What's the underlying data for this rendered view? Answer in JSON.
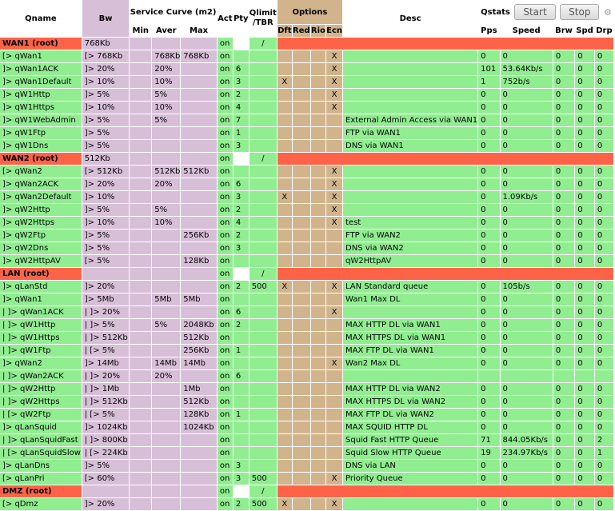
{
  "header": {
    "qname": "Qname",
    "bw": "Bw",
    "service_curve": "Service Curve (m2)",
    "min": "Min",
    "aver": "Aver",
    "max": "Max",
    "act": "Act",
    "pty": "Pty",
    "qlimit": "Qlimit /TBR",
    "options": "Options",
    "dft": "Dft",
    "red": "Red",
    "rio": "Rio",
    "ecn": "Ecn",
    "desc": "Desc",
    "qstats": "Qstats",
    "start": "Start",
    "stop": "Stop",
    "pps": "Pps",
    "speed": "Speed",
    "brw": "Brw",
    "spd": "Spd",
    "drp": "Drp",
    "gear_icon": "gear-icon"
  },
  "rows": [
    {
      "root": true,
      "name": "WAN1 (root)",
      "bw": "768Kb",
      "act": "on",
      "pty": "",
      "qlimit": "/"
    },
    {
      "name": "[> qWan1",
      "bw": "[> 768Kb",
      "min": "",
      "aver": "768Kb",
      "max": "768Kb",
      "act": "on",
      "pty": "",
      "qlimit": "",
      "dft": "",
      "red": "",
      "rio": "",
      "ecn": "X",
      "desc": "",
      "pps": "0",
      "speed": "0",
      "brw": "0",
      "spd": "0",
      "drp": "0"
    },
    {
      "name": " ]> qWan1ACK",
      "bw": "]> 20%",
      "min": "",
      "aver": "20%",
      "max": "",
      "act": "on",
      "pty": "6",
      "qlimit": "",
      "dft": "",
      "red": "",
      "rio": "",
      "ecn": "X",
      "desc": "",
      "pps": "101",
      "speed": "53.64Kb/s",
      "brw": "0",
      "spd": "0",
      "drp": "0"
    },
    {
      "name": " ]> qWan1Default",
      "bw": "]> 10%",
      "min": "",
      "aver": "10%",
      "max": "",
      "act": "on",
      "pty": "3",
      "qlimit": "",
      "dft": "X",
      "red": "",
      "rio": "",
      "ecn": "X",
      "desc": "",
      "pps": "1",
      "speed": "752b/s",
      "brw": "0",
      "spd": "0",
      "drp": "0"
    },
    {
      "name": " ]> qW1Http",
      "bw": "]> 5%",
      "min": "",
      "aver": "5%",
      "max": "",
      "act": "on",
      "pty": "2",
      "qlimit": "",
      "dft": "",
      "red": "",
      "rio": "",
      "ecn": "X",
      "desc": "",
      "pps": "0",
      "speed": "0",
      "brw": "0",
      "spd": "0",
      "drp": "0"
    },
    {
      "name": " ]> qW1Https",
      "bw": "]> 10%",
      "min": "",
      "aver": "10%",
      "max": "",
      "act": "on",
      "pty": "4",
      "qlimit": "",
      "dft": "",
      "red": "",
      "rio": "",
      "ecn": "X",
      "desc": "",
      "pps": "0",
      "speed": "0",
      "brw": "0",
      "spd": "0",
      "drp": "0"
    },
    {
      "name": " ]> qW1WebAdmin",
      "bw": "]> 5%",
      "min": "",
      "aver": "5%",
      "max": "",
      "act": "on",
      "pty": "7",
      "qlimit": "",
      "dft": "",
      "red": "",
      "rio": "",
      "ecn": "",
      "desc": "External Admin Access via WAN1",
      "pps": "0",
      "speed": "0",
      "brw": "0",
      "spd": "0",
      "drp": "0"
    },
    {
      "name": " ]> qW1Ftp",
      "bw": "]> 5%",
      "min": "",
      "aver": "",
      "max": "",
      "act": "on",
      "pty": "1",
      "qlimit": "",
      "dft": "",
      "red": "",
      "rio": "",
      "ecn": "",
      "desc": "FTP via WAN1",
      "pps": "0",
      "speed": "0",
      "brw": "0",
      "spd": "0",
      "drp": "0"
    },
    {
      "name": " ]> qW1Dns",
      "bw": "]> 5%",
      "min": "",
      "aver": "",
      "max": "",
      "act": "on",
      "pty": "3",
      "qlimit": "",
      "dft": "",
      "red": "",
      "rio": "",
      "ecn": "",
      "desc": "DNS via WAN1",
      "pps": "0",
      "speed": "0",
      "brw": "0",
      "spd": "0",
      "drp": "0"
    },
    {
      "root": true,
      "name": "WAN2 (root)",
      "bw": "512Kb",
      "act": "on",
      "pty": "",
      "qlimit": "/"
    },
    {
      "name": "[> qWan2",
      "bw": "[> 512Kb",
      "min": "",
      "aver": "512Kb",
      "max": "512Kb",
      "act": "on",
      "pty": "",
      "qlimit": "",
      "dft": "",
      "red": "",
      "rio": "",
      "ecn": "X",
      "desc": "",
      "pps": "0",
      "speed": "0",
      "brw": "0",
      "spd": "0",
      "drp": "0"
    },
    {
      "name": " ]> qWan2ACK",
      "bw": "]> 20%",
      "min": "",
      "aver": "20%",
      "max": "",
      "act": "on",
      "pty": "6",
      "qlimit": "",
      "dft": "",
      "red": "",
      "rio": "",
      "ecn": "X",
      "desc": "",
      "pps": "0",
      "speed": "0",
      "brw": "0",
      "spd": "0",
      "drp": "0"
    },
    {
      "name": " ]> qWan2Default",
      "bw": "]> 10%",
      "min": "",
      "aver": "",
      "max": "",
      "act": "on",
      "pty": "3",
      "qlimit": "",
      "dft": "X",
      "red": "",
      "rio": "",
      "ecn": "X",
      "desc": "",
      "pps": "0",
      "speed": "1.09Kb/s",
      "brw": "0",
      "spd": "0",
      "drp": "0"
    },
    {
      "name": " ]> qW2Http",
      "bw": "]> 5%",
      "min": "",
      "aver": "5%",
      "max": "",
      "act": "on",
      "pty": "2",
      "qlimit": "",
      "dft": "",
      "red": "",
      "rio": "",
      "ecn": "X",
      "desc": "",
      "pps": "0",
      "speed": "0",
      "brw": "0",
      "spd": "0",
      "drp": "0"
    },
    {
      "name": " ]> qW2Https",
      "bw": "]> 10%",
      "min": "",
      "aver": "10%",
      "max": "",
      "act": "on",
      "pty": "4",
      "qlimit": "",
      "dft": "",
      "red": "",
      "rio": "",
      "ecn": "X",
      "desc": "test",
      "pps": "0",
      "speed": "0",
      "brw": "0",
      "spd": "0",
      "drp": "0"
    },
    {
      "name": " ]> qW2Ftp",
      "bw": "]> 5%",
      "min": "",
      "aver": "",
      "max": "256Kb",
      "act": "on",
      "pty": "2",
      "qlimit": "",
      "dft": "",
      "red": "",
      "rio": "",
      "ecn": "",
      "desc": "FTP via WAN2",
      "pps": "0",
      "speed": "0",
      "brw": "0",
      "spd": "0",
      "drp": "0"
    },
    {
      "name": " ]> qW2Dns",
      "bw": "]> 5%",
      "min": "",
      "aver": "",
      "max": "",
      "act": "on",
      "pty": "3",
      "qlimit": "",
      "dft": "",
      "red": "",
      "rio": "",
      "ecn": "",
      "desc": "DNS via WAN2",
      "pps": "0",
      "speed": "0",
      "brw": "0",
      "spd": "0",
      "drp": "0"
    },
    {
      "name": " ]> qW2HttpAV",
      "bw": "[> 5%",
      "min": "",
      "aver": "",
      "max": "128Kb",
      "act": "on",
      "pty": "",
      "qlimit": "",
      "dft": "",
      "red": "",
      "rio": "",
      "ecn": "",
      "desc": "qW2HttpAV",
      "pps": "0",
      "speed": "0",
      "brw": "0",
      "spd": "0",
      "drp": "0"
    },
    {
      "root": true,
      "name": "LAN (root)",
      "bw": "",
      "act": "on",
      "pty": "",
      "qlimit": "/"
    },
    {
      "name": " ]> qLanStd",
      "bw": "]> 20%",
      "min": "",
      "aver": "",
      "max": "",
      "act": "on",
      "pty": "2",
      "qlimit": "500",
      "dft": "X",
      "red": "",
      "rio": "",
      "ecn": "X",
      "desc": "LAN Standard queue",
      "pps": "0",
      "speed": "105b/s",
      "brw": "0",
      "spd": "0",
      "drp": "0"
    },
    {
      "name": " ]> qWan1",
      "bw": "]> 5Mb",
      "min": "",
      "aver": "5Mb",
      "max": "5Mb",
      "act": "on",
      "pty": "",
      "qlimit": "",
      "dft": "",
      "red": "",
      "rio": "",
      "ecn": "",
      "desc": "Wan1 Max DL",
      "pps": "0",
      "speed": "0",
      "brw": "0",
      "spd": "0",
      "drp": "0"
    },
    {
      "name": " |  ]> qWan1ACK",
      "bw": "|  ]> 20%",
      "min": "",
      "aver": "",
      "max": "",
      "act": "on",
      "pty": "6",
      "qlimit": "",
      "dft": "",
      "red": "",
      "rio": "",
      "ecn": "X",
      "desc": "",
      "pps": "0",
      "speed": "0",
      "brw": "0",
      "spd": "0",
      "drp": "0"
    },
    {
      "name": " |  ]> qW1Http",
      "bw": "|  ]> 5%",
      "min": "",
      "aver": "5%",
      "max": "2048Kb",
      "act": "on",
      "pty": "2",
      "qlimit": "",
      "dft": "",
      "red": "",
      "rio": "",
      "ecn": "",
      "desc": "MAX HTTP DL via WAN1",
      "pps": "0",
      "speed": "0",
      "brw": "0",
      "spd": "0",
      "drp": "0"
    },
    {
      "name": " |  ]> qW1Https",
      "bw": "|  ]> 512Kb",
      "min": "",
      "aver": "",
      "max": "512Kb",
      "act": "on",
      "pty": "",
      "qlimit": "",
      "dft": "",
      "red": "",
      "rio": "",
      "ecn": "",
      "desc": "MAX HTTPS DL via WAN1",
      "pps": "0",
      "speed": "0",
      "brw": "0",
      "spd": "0",
      "drp": "0"
    },
    {
      "name": " |  ]> qW1Ftp",
      "bw": "|  [> 5%",
      "min": "",
      "aver": "",
      "max": "256Kb",
      "act": "on",
      "pty": "1",
      "qlimit": "",
      "dft": "",
      "red": "",
      "rio": "",
      "ecn": "",
      "desc": "MAX FTP DL via WAN1",
      "pps": "0",
      "speed": "0",
      "brw": "0",
      "spd": "0",
      "drp": "0"
    },
    {
      "name": " ]> qWan2",
      "bw": "]> 14Mb",
      "min": "",
      "aver": "14Mb",
      "max": "14Mb",
      "act": "on",
      "pty": "",
      "qlimit": "",
      "dft": "",
      "red": "",
      "rio": "",
      "ecn": "X",
      "desc": "Wan2 Max DL",
      "pps": "0",
      "speed": "0",
      "brw": "0",
      "spd": "0",
      "drp": "0"
    },
    {
      "name": " |  ]> qWan2ACK",
      "bw": "|  ]> 20%",
      "min": "",
      "aver": "20%",
      "max": "",
      "act": "on",
      "pty": "6",
      "qlimit": "",
      "dft": "",
      "red": "",
      "rio": "",
      "ecn": "",
      "desc": "",
      "pps": "",
      "speed": "",
      "brw": "",
      "spd": "",
      "drp": ""
    },
    {
      "name": " |  ]> qW2Http",
      "bw": "|  ]> 1Mb",
      "min": "",
      "aver": "",
      "max": "1Mb",
      "act": "on",
      "pty": "",
      "qlimit": "",
      "dft": "",
      "red": "",
      "rio": "",
      "ecn": "",
      "desc": "MAX HTTP DL via WAN2",
      "pps": "0",
      "speed": "0",
      "brw": "0",
      "spd": "0",
      "drp": "0"
    },
    {
      "name": " |  ]> qW2Https",
      "bw": "|  ]> 512Kb",
      "min": "",
      "aver": "",
      "max": "512Kb",
      "act": "on",
      "pty": "",
      "qlimit": "",
      "dft": "",
      "red": "",
      "rio": "",
      "ecn": "",
      "desc": "MAX HTTPS DL via WAN2",
      "pps": "0",
      "speed": "0",
      "brw": "0",
      "spd": "0",
      "drp": "0"
    },
    {
      "name": " |  [> qW2Ftp",
      "bw": "|  [> 5%",
      "min": "",
      "aver": "",
      "max": "128Kb",
      "act": "on",
      "pty": "1",
      "qlimit": "",
      "dft": "",
      "red": "",
      "rio": "",
      "ecn": "",
      "desc": "MAX FTP DL via WAN2",
      "pps": "0",
      "speed": "0",
      "brw": "0",
      "spd": "0",
      "drp": "0"
    },
    {
      "name": " ]> qLanSquid",
      "bw": "]> 1024Kb",
      "min": "",
      "aver": "",
      "max": "1024Kb",
      "act": "on",
      "pty": "",
      "qlimit": "",
      "dft": "",
      "red": "",
      "rio": "",
      "ecn": "",
      "desc": "MAX SQUID HTTP DL",
      "pps": "0",
      "speed": "0",
      "brw": "0",
      "spd": "0",
      "drp": "0"
    },
    {
      "name": " |  ]> qLanSquidFast",
      "bw": "|  ]> 800Kb",
      "min": "",
      "aver": "",
      "max": "",
      "act": "on",
      "pty": "",
      "qlimit": "",
      "dft": "",
      "red": "",
      "rio": "",
      "ecn": "",
      "desc": "Squid Fast HTTP Queue",
      "pps": "71",
      "speed": "844.05Kb/s",
      "brw": "0",
      "spd": "0",
      "drp": "2"
    },
    {
      "name": " |  [> qLanSquidSlow",
      "bw": "|  [> 224Kb",
      "min": "",
      "aver": "",
      "max": "",
      "act": "on",
      "pty": "",
      "qlimit": "",
      "dft": "",
      "red": "",
      "rio": "",
      "ecn": "",
      "desc": "Squid Slow HTTP Queue",
      "pps": "19",
      "speed": "234.97Kb/s",
      "brw": "0",
      "spd": "0",
      "drp": "1"
    },
    {
      "name": " ]> qLanDns",
      "bw": "]> 5%",
      "min": "",
      "aver": "",
      "max": "",
      "act": "on",
      "pty": "3",
      "qlimit": "",
      "dft": "",
      "red": "",
      "rio": "",
      "ecn": "",
      "desc": "DNS via LAN",
      "pps": "0",
      "speed": "0",
      "brw": "0",
      "spd": "0",
      "drp": "0"
    },
    {
      "name": "[> qLanPri",
      "bw": "[> 60%",
      "min": "",
      "aver": "",
      "max": "",
      "act": "on",
      "pty": "3",
      "qlimit": "500",
      "dft": "",
      "red": "",
      "rio": "",
      "ecn": "X",
      "desc": "Priority Queue",
      "pps": "0",
      "speed": "0",
      "brw": "0",
      "spd": "0",
      "drp": "0"
    },
    {
      "root": true,
      "name": "DMZ (root)",
      "bw": "",
      "act": "on",
      "pty": "",
      "qlimit": "/"
    },
    {
      "name": "[> qDmz",
      "bw": "]> 20%",
      "min": "",
      "aver": "",
      "max": "",
      "act": "on",
      "pty": "2",
      "qlimit": "500",
      "dft": "X",
      "red": "",
      "rio": "",
      "ecn": "X",
      "desc": "",
      "pps": "0",
      "speed": "0",
      "brw": "0",
      "spd": "0",
      "drp": "0"
    }
  ]
}
